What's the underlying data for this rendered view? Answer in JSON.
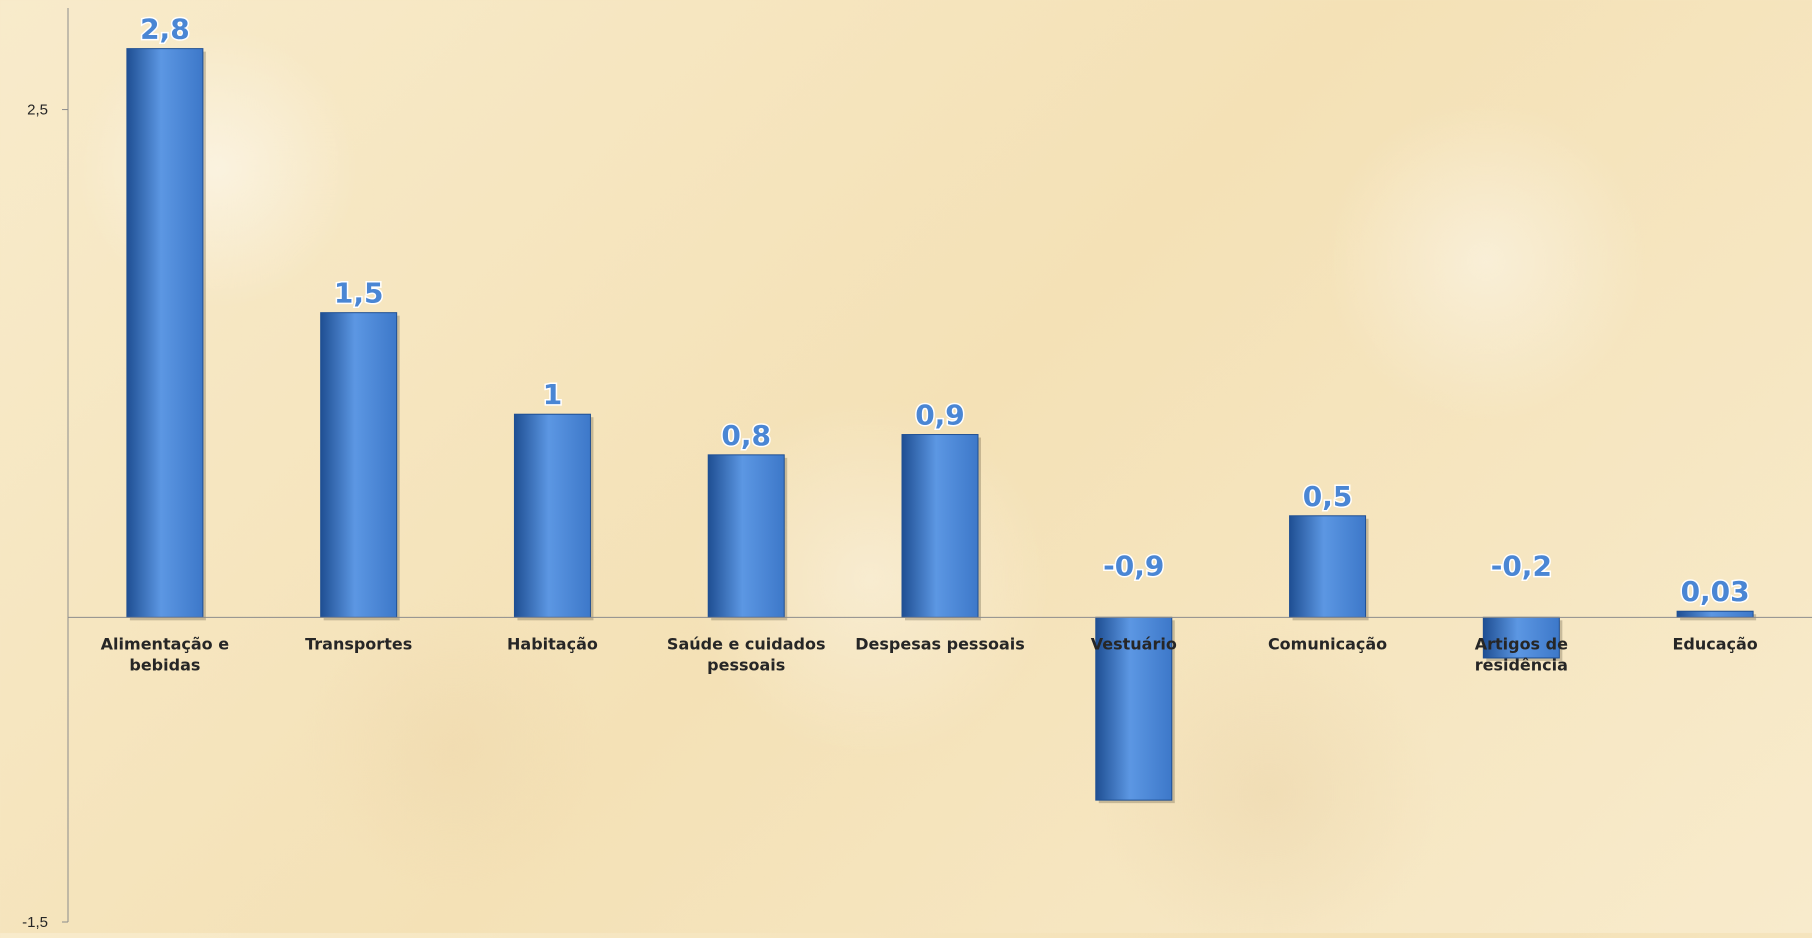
{
  "chart_data": {
    "type": "bar",
    "categories": [
      "Alimentação e bebidas",
      "Transportes",
      "Habitação",
      "Saúde e cuidados pessoais",
      "Despesas pessoais",
      "Vestuário",
      "Comunicação",
      "Artigos de residência",
      "Educação"
    ],
    "category_lines": [
      [
        "Alimentação e",
        "bebidas"
      ],
      [
        "Transportes"
      ],
      [
        "Habitação"
      ],
      [
        "Saúde e cuidados",
        "pessoais"
      ],
      [
        "Despesas pessoais"
      ],
      [
        "Vestuário"
      ],
      [
        "Comunicação"
      ],
      [
        "Artigos de",
        "residência"
      ],
      [
        "Educação"
      ]
    ],
    "values": [
      2.8,
      1.5,
      1,
      0.8,
      0.9,
      -0.9,
      0.5,
      -0.2,
      0.03
    ],
    "data_labels": [
      "2,8",
      "1,5",
      "1",
      "0,8",
      "0,9",
      "-0,9",
      "0,5",
      "-0,2",
      "0,03"
    ],
    "title": "",
    "xlabel": "",
    "ylabel": "",
    "ylim": [
      -1.5,
      3.0
    ],
    "y_ticks": [
      2.5,
      -1.5
    ],
    "y_tick_labels": [
      "2,5",
      "-1,5"
    ],
    "grid": false,
    "legend": "none",
    "colors": {
      "bar": "#3d78c9",
      "bar_light": "#5c97e3",
      "bar_dark": "#1f4f93",
      "data_label": "#4a86d4",
      "axis": "#8c8c8c"
    }
  }
}
